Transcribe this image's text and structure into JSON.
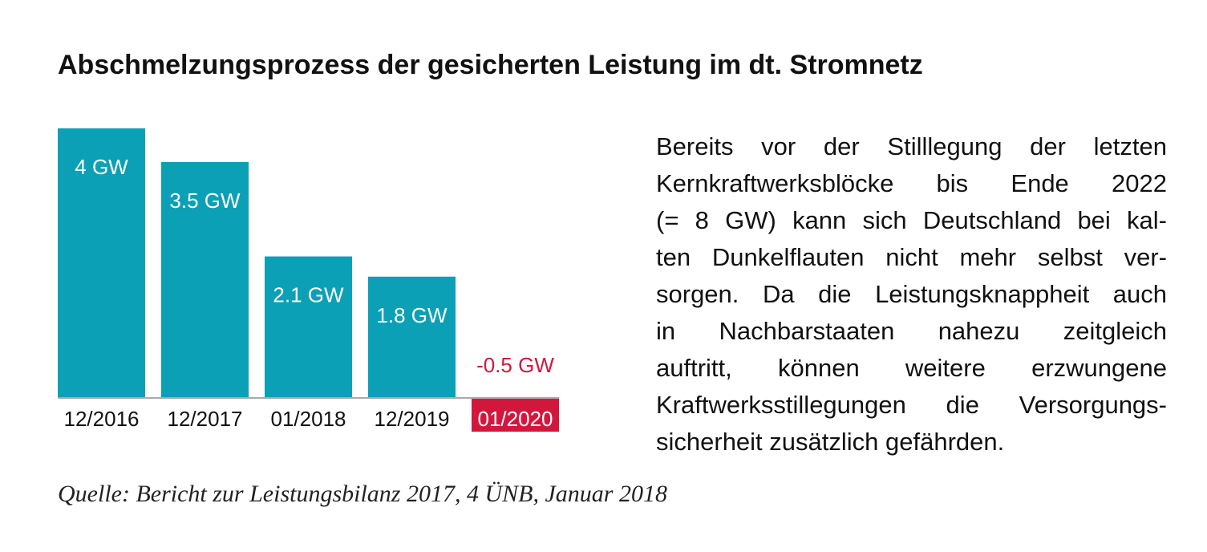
{
  "chart_data": {
    "type": "bar",
    "title": "Abschmelzungsprozess der gesicherten Leistung im dt. Stromnetz",
    "categories": [
      "12/2016",
      "12/2017",
      "01/2018",
      "12/2019",
      "01/2020"
    ],
    "values": [
      4,
      3.5,
      2.1,
      1.8,
      -0.5
    ],
    "value_labels": [
      "4 GW",
      "3.5 GW",
      "2.1 GW",
      "1.8 GW",
      "-0.5 GW"
    ],
    "color": "#0ca0b6",
    "negative_color": "#d3173c",
    "source": "Quelle: Bericht zur Leistungsbilanz 2017, 4 ÜNB, Januar 2018"
  },
  "text": {
    "lines": [
      "Bereits vor der Stilllegung der letzten",
      "Kernkraftwerksblöcke bis Ende 2022",
      "(= 8 GW) kann sich Deutschland bei kal-",
      "ten Dunkelflauten nicht mehr selbst ver-",
      "sorgen. Da die Leistungsknappheit auch",
      "in Nachbarstaaten nahezu zeitgleich",
      "auftritt, können weitere erzwungene",
      "Kraftwerksstillegungen die Versorgungs-",
      "sicherheit zusätzlich gefährden."
    ]
  }
}
